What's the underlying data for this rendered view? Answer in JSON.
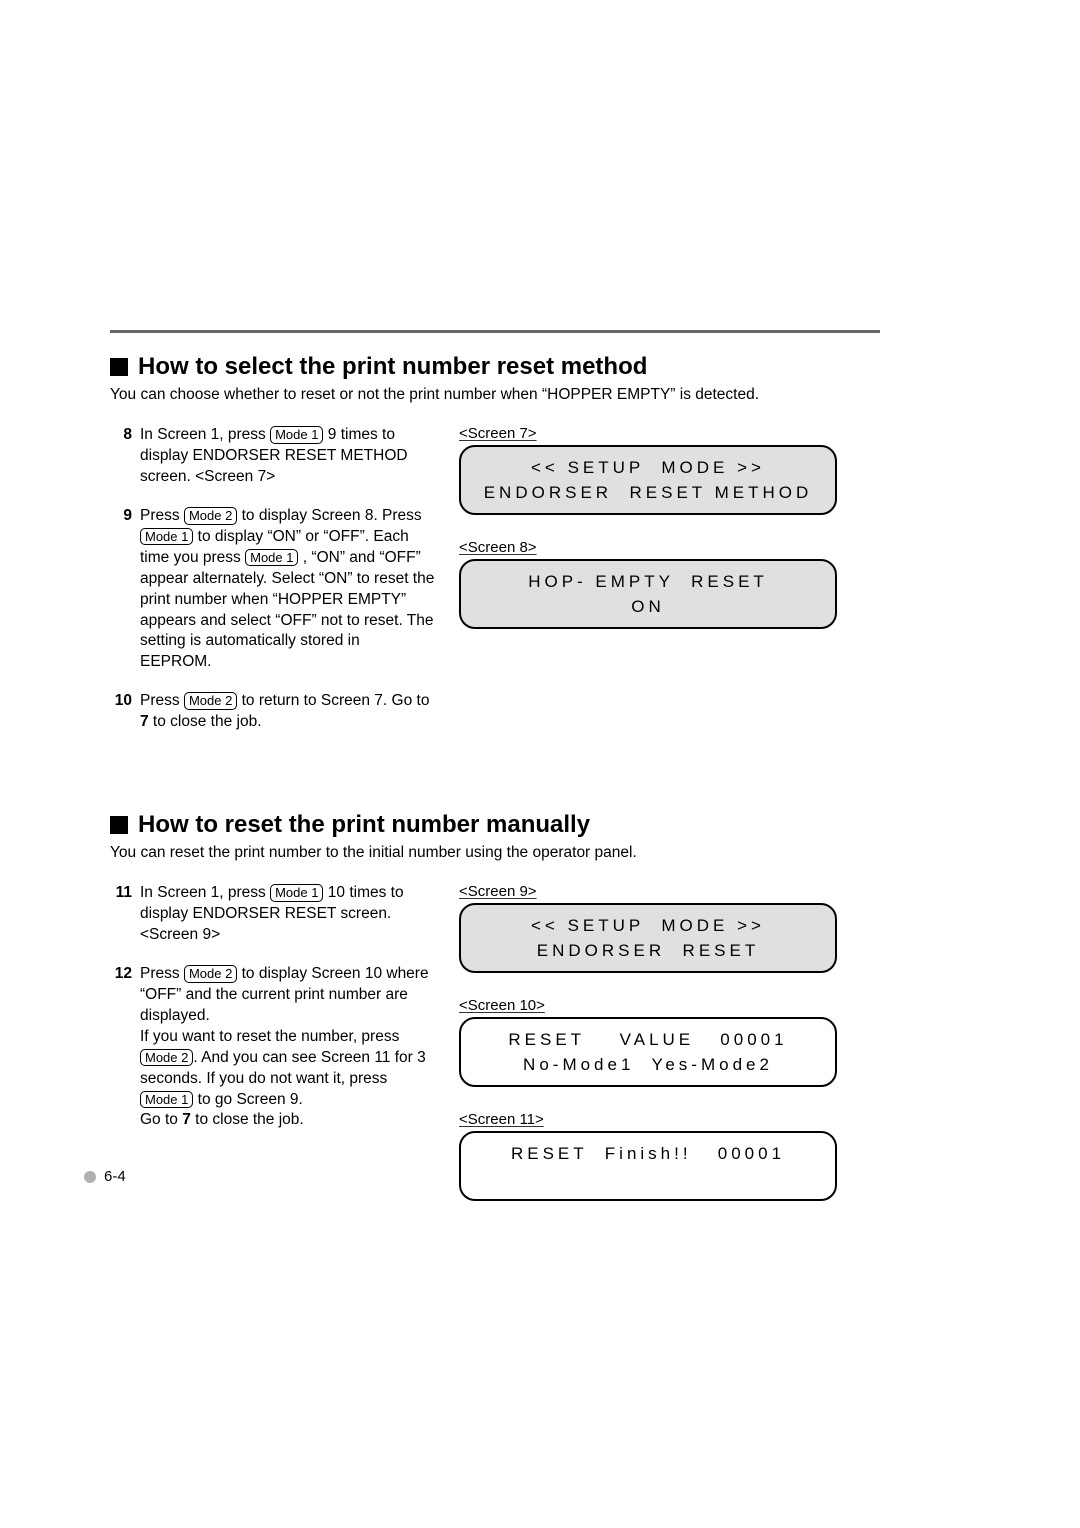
{
  "section1": {
    "heading": "How to  select the print number reset method",
    "intro": "You can choose whether to reset or not the print number when “HOPPER EMPTY” is detected.",
    "steps": [
      {
        "num": "8",
        "frag1": "In Screen 1, press ",
        "key1": "Mode 1",
        "frag2": " 9 times to display ENDORSER RESET METHOD screen.  <Screen 7>"
      },
      {
        "num": "9",
        "frag1": "Press ",
        "key1": "Mode 2",
        "frag2": " to display Screen 8.  Press ",
        "key2": "Mode 1",
        "frag3": "  to display “ON” or “OFF”.  Each time you press ",
        "key3": "Mode 1",
        "frag4": " , “ON” and “OFF” appear alternately.  Select “ON” to reset the print number when “HOPPER EMPTY” appears and select “OFF” not to reset.  The setting is automatically stored in EEPROM."
      },
      {
        "num": "10",
        "frag1": "Press ",
        "key1": "Mode 2",
        "frag2": " to return to Screen 7. Go to ",
        "bold1": "7",
        "frag3": " to close the job."
      }
    ],
    "screens": [
      {
        "label": "<Screen 7>",
        "bg": "grey",
        "line1": "<< SETUP  MODE >>",
        "line2": "ENDORSER  RESET METHOD"
      },
      {
        "label": "<Screen 8>",
        "bg": "grey",
        "line1": "HOP- EMPTY  RESET",
        "line2": "ON"
      }
    ]
  },
  "section2": {
    "heading": "How to  reset the print number manually",
    "intro": "You can reset the print number to the initial number using the operator panel.",
    "steps": [
      {
        "num": "11",
        "frag1": "In Screen 1, press ",
        "key1": "Mode 1",
        "frag2": " 10 times to display ENDORSER RESET screen.  <Screen 9>"
      },
      {
        "num": "12",
        "frag1": "Press ",
        "key1": "Mode 2",
        "frag2": " to display Screen 10 where “OFF” and the current print number are displayed.",
        "frag3": "If you want to reset the number, press ",
        "key2": "Mode 2",
        "frag4": ".  And you can see Screen 11 for 3 seconds.  If you do not want  it, press ",
        "key3": "Mode 1",
        "frag5": " to go Screen 9.",
        "frag6": "Go to ",
        "bold1": "7",
        "frag7": " to close the job."
      }
    ],
    "screens": [
      {
        "label": "<Screen 9>",
        "bg": "grey",
        "line1": "<< SETUP  MODE >>",
        "line2": "ENDORSER  RESET"
      },
      {
        "label": "<Screen 10>",
        "bg": "white",
        "line1": "RESET    VALUE   00001",
        "line2": "No-Mode1  Yes-Mode2"
      },
      {
        "label": "<Screen 11>",
        "bg": "white",
        "line1": "RESET  Finish!!   00001",
        "line2": " "
      }
    ]
  },
  "keys": {
    "mode1": "Mode 1",
    "mode2": "Mode 2"
  },
  "footer": "6-4",
  "colors": {
    "divider": "#666666",
    "lcd_grey": "#e0e0e0",
    "lcd_border": "#000000",
    "text": "#000000"
  }
}
